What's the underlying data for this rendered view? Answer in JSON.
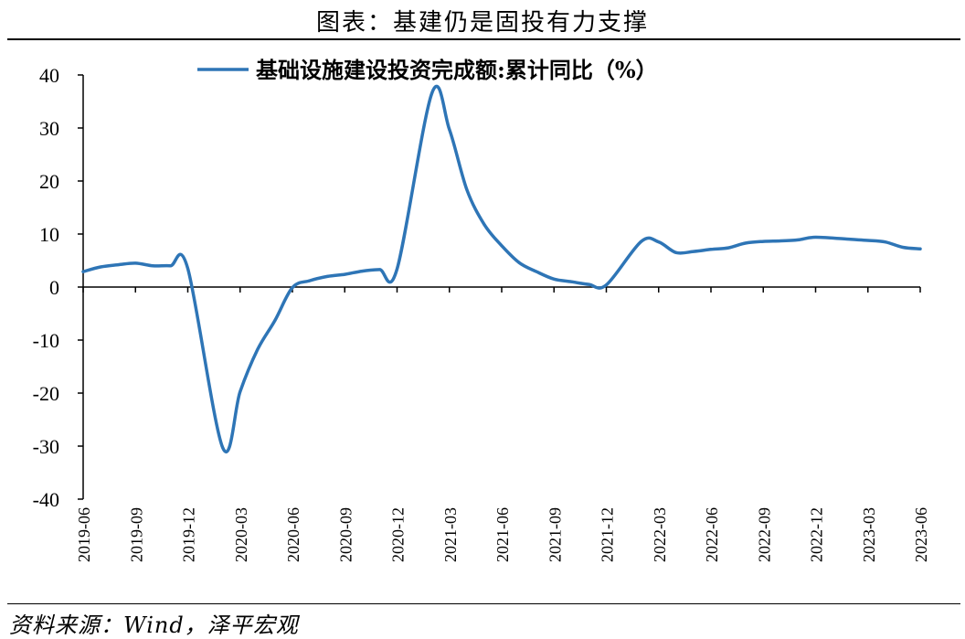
{
  "header": {
    "title": "图表：基建仍是固投有力支撑"
  },
  "footer": {
    "source": "资料来源：Wind，泽平宏观"
  },
  "chart_data": {
    "type": "line",
    "title": "图表：基建仍是固投有力支撑",
    "xlabel": "",
    "ylabel": "",
    "ylim": [
      -40,
      40
    ],
    "yticks": [
      40,
      30,
      20,
      10,
      0,
      -10,
      -20,
      -30,
      -40
    ],
    "ytick_labels": [
      "40",
      "30",
      "20",
      "10",
      "0",
      "-10",
      "-20",
      "-30",
      "-40"
    ],
    "xtick_labels": [
      "2019-06",
      "2019-09",
      "2019-12",
      "2020-03",
      "2020-06",
      "2020-09",
      "2020-12",
      "2021-03",
      "2021-06",
      "2021-09",
      "2021-12",
      "2022-03",
      "2022-06",
      "2022-09",
      "2022-12",
      "2023-03",
      "2023-06"
    ],
    "grid": false,
    "legend_position": "top",
    "series": [
      {
        "name": "基础设施建设投资完成额:累计同比（%）",
        "color": "#2E75B6",
        "x": [
          "2019-06",
          "2019-07",
          "2019-08",
          "2019-09",
          "2019-10",
          "2019-11",
          "2019-12",
          "2020-02",
          "2020-03",
          "2020-04",
          "2020-05",
          "2020-06",
          "2020-07",
          "2020-08",
          "2020-09",
          "2020-10",
          "2020-11",
          "2020-12",
          "2021-02",
          "2021-03",
          "2021-04",
          "2021-05",
          "2021-06",
          "2021-07",
          "2021-08",
          "2021-09",
          "2021-10",
          "2021-11",
          "2021-12",
          "2022-02",
          "2022-03",
          "2022-04",
          "2022-05",
          "2022-06",
          "2022-07",
          "2022-08",
          "2022-09",
          "2022-10",
          "2022-11",
          "2022-12",
          "2023-02",
          "2023-03",
          "2023-04",
          "2023-05",
          "2023-06"
        ],
        "values": [
          2.9,
          3.8,
          4.2,
          4.5,
          4.0,
          4.0,
          3.5,
          -30.3,
          -19.7,
          -11.8,
          -6.3,
          -0.1,
          1.2,
          2.0,
          2.4,
          3.0,
          3.3,
          3.4,
          36.6,
          29.7,
          18.4,
          11.8,
          7.8,
          4.6,
          2.9,
          1.5,
          1.0,
          0.5,
          0.4,
          8.6,
          8.5,
          6.5,
          6.7,
          7.1,
          7.4,
          8.3,
          8.6,
          8.7,
          8.9,
          9.4,
          9.0,
          8.8,
          8.5,
          7.5,
          7.2
        ]
      }
    ]
  }
}
